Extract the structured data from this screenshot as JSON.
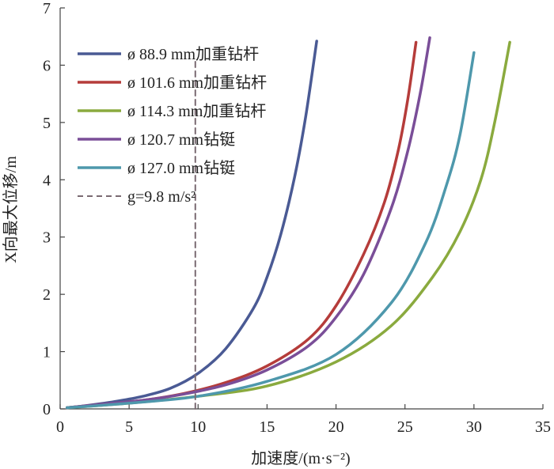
{
  "chart_data": {
    "type": "line",
    "xlabel": "加速度/(m·s⁻²)",
    "ylabel": "X向最大位移/m",
    "xlim": [
      0,
      35
    ],
    "ylim": [
      0,
      7
    ],
    "xticks": [
      "0",
      "5",
      "10",
      "15",
      "20",
      "25",
      "30",
      "35"
    ],
    "yticks": [
      "0",
      "1",
      "2",
      "3",
      "4",
      "5",
      "6",
      "7"
    ],
    "grid": false,
    "legend_position": "top-left",
    "series": [
      {
        "name": "ø 88.9 mm加重钻杆",
        "color": "#4a5a94",
        "style": "solid",
        "points": [
          [
            0.5,
            0.02
          ],
          [
            2,
            0.06
          ],
          [
            4,
            0.13
          ],
          [
            6,
            0.22
          ],
          [
            8,
            0.36
          ],
          [
            10,
            0.62
          ],
          [
            12,
            1.05
          ],
          [
            14,
            1.75
          ],
          [
            15,
            2.3
          ],
          [
            16,
            3.05
          ],
          [
            17,
            4.05
          ],
          [
            17.8,
            5.1
          ],
          [
            18.6,
            6.42
          ]
        ]
      },
      {
        "name": "ø 101.6 mm加重钻杆",
        "color": "#b53c3a",
        "style": "solid",
        "points": [
          [
            0.5,
            0.02
          ],
          [
            3,
            0.08
          ],
          [
            6,
            0.15
          ],
          [
            9,
            0.27
          ],
          [
            12,
            0.46
          ],
          [
            15,
            0.75
          ],
          [
            18,
            1.22
          ],
          [
            20,
            1.8
          ],
          [
            22,
            2.7
          ],
          [
            23.5,
            3.6
          ],
          [
            24.5,
            4.5
          ],
          [
            25.2,
            5.4
          ],
          [
            25.8,
            6.4
          ]
        ]
      },
      {
        "name": "ø 114.3 mm加重钻杆",
        "color": "#8aaa3e",
        "style": "solid",
        "points": [
          [
            0.5,
            0.02
          ],
          [
            5,
            0.1
          ],
          [
            10,
            0.22
          ],
          [
            15,
            0.4
          ],
          [
            20,
            0.82
          ],
          [
            24,
            1.45
          ],
          [
            27,
            2.3
          ],
          [
            29,
            3.1
          ],
          [
            30.5,
            4.0
          ],
          [
            31.5,
            5.0
          ],
          [
            32.6,
            6.4
          ]
        ]
      },
      {
        "name": "ø 120.7 mm钻铤",
        "color": "#7a4e98",
        "style": "solid",
        "points": [
          [
            0.5,
            0.02
          ],
          [
            3,
            0.08
          ],
          [
            6,
            0.15
          ],
          [
            9,
            0.26
          ],
          [
            12,
            0.42
          ],
          [
            15,
            0.68
          ],
          [
            18,
            1.1
          ],
          [
            20,
            1.6
          ],
          [
            22,
            2.35
          ],
          [
            24,
            3.5
          ],
          [
            25.2,
            4.5
          ],
          [
            26.1,
            5.5
          ],
          [
            26.8,
            6.48
          ]
        ]
      },
      {
        "name": "ø 127.0 mm钻铤",
        "color": "#4e98ac",
        "style": "solid",
        "points": [
          [
            0.5,
            0.02
          ],
          [
            5,
            0.1
          ],
          [
            10,
            0.22
          ],
          [
            15,
            0.48
          ],
          [
            20,
            0.95
          ],
          [
            24,
            1.85
          ],
          [
            26.5,
            2.9
          ],
          [
            28,
            3.9
          ],
          [
            29,
            4.8
          ],
          [
            30,
            6.22
          ]
        ]
      },
      {
        "name": "g=9.8 m/s²",
        "color": "#7a6a72",
        "style": "dashed",
        "points": [
          [
            9.8,
            0
          ],
          [
            9.8,
            6.1
          ]
        ]
      }
    ]
  }
}
